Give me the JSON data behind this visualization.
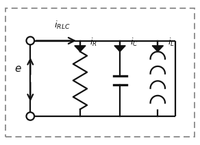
{
  "fig_width": 2.92,
  "fig_height": 2.12,
  "dpi": 100,
  "bg_color": "#ffffff",
  "dash_border_color": "#777777",
  "line_color": "#111111",
  "font_size": 9,
  "font_style": "italic"
}
